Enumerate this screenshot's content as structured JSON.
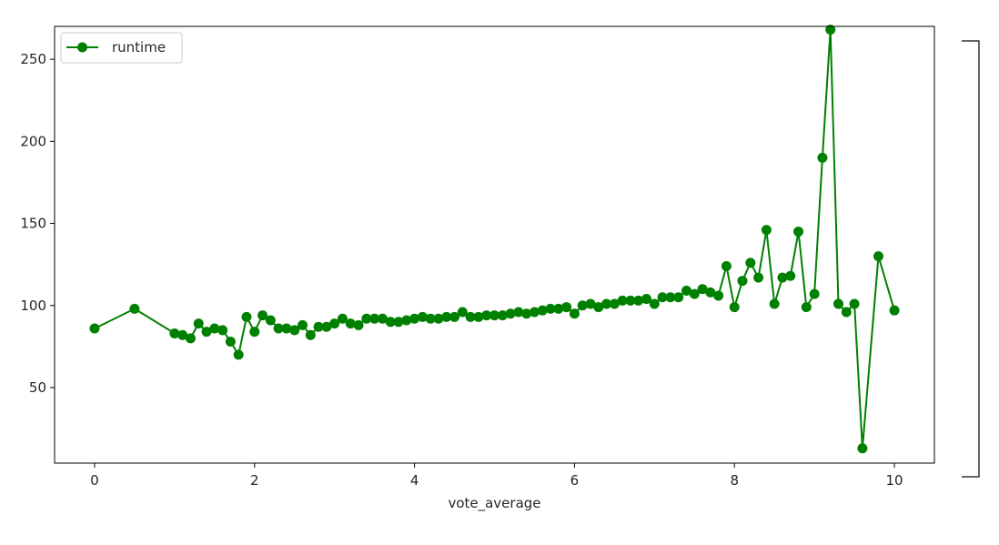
{
  "chart_data": {
    "type": "line",
    "title": "",
    "xlabel": "vote_average",
    "ylabel": "",
    "xlim": [
      -0.5,
      10.5
    ],
    "ylim": [
      4,
      270
    ],
    "xticks": [
      0,
      2,
      4,
      6,
      8,
      10
    ],
    "yticks": [
      50,
      100,
      150,
      200,
      250
    ],
    "grid": false,
    "legend_position": "top-left",
    "series": [
      {
        "name": "runtime",
        "color": "#008000",
        "marker": "circle",
        "x": [
          0.0,
          0.5,
          1.0,
          1.1,
          1.2,
          1.3,
          1.4,
          1.5,
          1.6,
          1.7,
          1.8,
          1.9,
          2.0,
          2.1,
          2.2,
          2.3,
          2.4,
          2.5,
          2.6,
          2.7,
          2.8,
          2.9,
          3.0,
          3.1,
          3.2,
          3.3,
          3.4,
          3.5,
          3.6,
          3.7,
          3.8,
          3.9,
          4.0,
          4.1,
          4.2,
          4.3,
          4.4,
          4.5,
          4.6,
          4.7,
          4.8,
          4.9,
          5.0,
          5.1,
          5.2,
          5.3,
          5.4,
          5.5,
          5.6,
          5.7,
          5.8,
          5.9,
          6.0,
          6.1,
          6.2,
          6.3,
          6.4,
          6.5,
          6.6,
          6.7,
          6.8,
          6.9,
          7.0,
          7.1,
          7.2,
          7.3,
          7.4,
          7.5,
          7.6,
          7.7,
          7.8,
          7.9,
          8.0,
          8.1,
          8.2,
          8.3,
          8.4,
          8.5,
          8.6,
          8.7,
          8.8,
          8.9,
          9.0,
          9.1,
          9.2,
          9.3,
          9.4,
          9.5,
          9.6,
          9.8,
          10.0
        ],
        "y": [
          86,
          98,
          83,
          82,
          80,
          89,
          84,
          86,
          85,
          78,
          70,
          93,
          84,
          94,
          91,
          86,
          86,
          85,
          88,
          82,
          87,
          87,
          89,
          92,
          89,
          88,
          92,
          92,
          92,
          90,
          90,
          91,
          92,
          93,
          92,
          92,
          93,
          93,
          96,
          93,
          93,
          94,
          94,
          94,
          95,
          96,
          95,
          96,
          97,
          98,
          98,
          99,
          95,
          100,
          101,
          99,
          101,
          101,
          103,
          103,
          103,
          104,
          101,
          105,
          105,
          105,
          109,
          107,
          110,
          108,
          106,
          124,
          99,
          115,
          126,
          117,
          146,
          101,
          117,
          118,
          145,
          99,
          107,
          190,
          268,
          101,
          96,
          101,
          13,
          130,
          97
        ]
      }
    ]
  }
}
